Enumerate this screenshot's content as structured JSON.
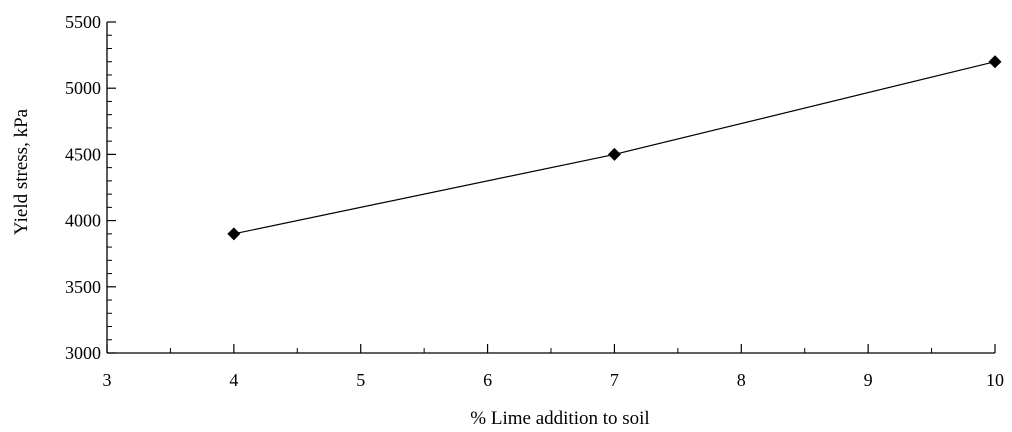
{
  "chart_data": {
    "type": "line",
    "title": "",
    "xlabel": "%  Lime addition to soil",
    "ylabel": "Yield stress, kPa",
    "xlim": [
      3,
      10
    ],
    "ylim": [
      3000,
      5500
    ],
    "x_ticks": [
      3,
      4,
      5,
      6,
      7,
      8,
      9,
      10
    ],
    "x_tick_labels": [
      "3",
      "4",
      "5",
      "6",
      "7",
      "8",
      "9",
      "10"
    ],
    "y_ticks": [
      3000,
      3500,
      4000,
      4500,
      5000,
      5500
    ],
    "y_tick_labels": [
      "3000",
      "3500",
      "4000",
      "4500",
      "5000",
      "5500"
    ],
    "grid": false,
    "legend": "none",
    "series": [
      {
        "marker": "diamond",
        "color": "#000000",
        "points": [
          {
            "x": 4,
            "y": 3900
          },
          {
            "x": 7,
            "y": 4500
          },
          {
            "x": 10,
            "y": 5200
          }
        ]
      }
    ]
  }
}
